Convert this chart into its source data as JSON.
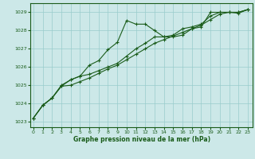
{
  "title": "Graphe pression niveau de la mer (hPa)",
  "bg_color": "#cce8e8",
  "grid_color": "#99cccc",
  "line_color": "#1a5c1a",
  "x_ticks": [
    0,
    1,
    2,
    3,
    4,
    5,
    6,
    7,
    8,
    9,
    10,
    11,
    12,
    13,
    14,
    15,
    16,
    17,
    18,
    19,
    20,
    21,
    22,
    23
  ],
  "y_ticks": [
    1023,
    1024,
    1025,
    1026,
    1027,
    1028,
    1029
  ],
  "ylim": [
    1022.7,
    1029.5
  ],
  "xlim": [
    -0.3,
    23.5
  ],
  "series1_x": [
    0,
    1,
    2,
    3,
    4,
    5,
    6,
    7,
    8,
    9,
    10,
    11,
    12,
    13,
    14,
    15,
    16,
    17,
    18,
    19,
    20,
    21,
    22,
    23
  ],
  "series1_y": [
    1023.2,
    1023.9,
    1024.3,
    1025.0,
    1025.3,
    1025.5,
    1026.1,
    1026.35,
    1026.95,
    1027.35,
    1028.55,
    1028.35,
    1028.35,
    1028.0,
    1027.65,
    1027.65,
    1027.75,
    1028.1,
    1028.2,
    1029.0,
    1029.0,
    1029.0,
    1028.95,
    1029.15
  ],
  "series2_x": [
    0,
    1,
    2,
    3,
    4,
    5,
    6,
    7,
    8,
    9,
    10,
    11,
    12,
    13,
    14,
    15,
    16,
    17,
    18,
    19,
    20,
    21,
    22,
    23
  ],
  "series2_y": [
    1023.2,
    1023.9,
    1024.3,
    1024.95,
    1025.3,
    1025.5,
    1025.6,
    1025.8,
    1026.0,
    1026.2,
    1026.6,
    1027.0,
    1027.3,
    1027.65,
    1027.65,
    1027.75,
    1028.1,
    1028.2,
    1028.35,
    1028.8,
    1029.0,
    1029.0,
    1029.0,
    1029.15
  ],
  "series3_x": [
    0,
    1,
    2,
    3,
    4,
    5,
    6,
    7,
    8,
    9,
    10,
    11,
    12,
    13,
    14,
    15,
    16,
    17,
    18,
    19,
    20,
    21,
    22,
    23
  ],
  "series3_y": [
    1023.2,
    1023.9,
    1024.3,
    1024.95,
    1025.0,
    1025.2,
    1025.4,
    1025.65,
    1025.9,
    1026.1,
    1026.4,
    1026.7,
    1027.0,
    1027.3,
    1027.5,
    1027.7,
    1027.9,
    1028.1,
    1028.3,
    1028.6,
    1028.9,
    1029.0,
    1029.0,
    1029.15
  ]
}
